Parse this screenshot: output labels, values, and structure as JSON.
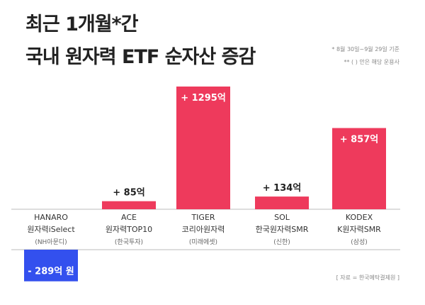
{
  "title_line1": "최근 1개월*간",
  "title_line2": "국내 원자력 ETF 순자산 증감",
  "note1": "* 8월 30일~9월 29일 기준",
  "note2": "** ( ) 안은 해당 운용사",
  "source": "[ 자료 = 한국예탁결제원 ]",
  "colors": {
    "positive": "#ee3a5c",
    "negative": "#3350ee",
    "axis": "#bbbbbb"
  },
  "chart_data": {
    "type": "bar",
    "unit": "억 원",
    "categories": [
      {
        "line1": "HANARO",
        "line2": "원자력iSelect",
        "line3": "(NH아문디)"
      },
      {
        "line1": "ACE",
        "line2": "원자력TOP10",
        "line3": "(한국투자)"
      },
      {
        "line1": "TIGER",
        "line2": "코리아원자력",
        "line3": "(미래에셋)"
      },
      {
        "line1": "SOL",
        "line2": "한국원자력SMR",
        "line3": "(신한)"
      },
      {
        "line1": "KODEX",
        "line2": "K원자력SMR",
        "line3": "(삼성)"
      }
    ],
    "values": [
      -289,
      85,
      1295,
      134,
      857
    ],
    "labels": [
      "- 289억 원",
      "+ 85억",
      "+ 1295억",
      "+ 134억",
      "+ 857억"
    ]
  }
}
